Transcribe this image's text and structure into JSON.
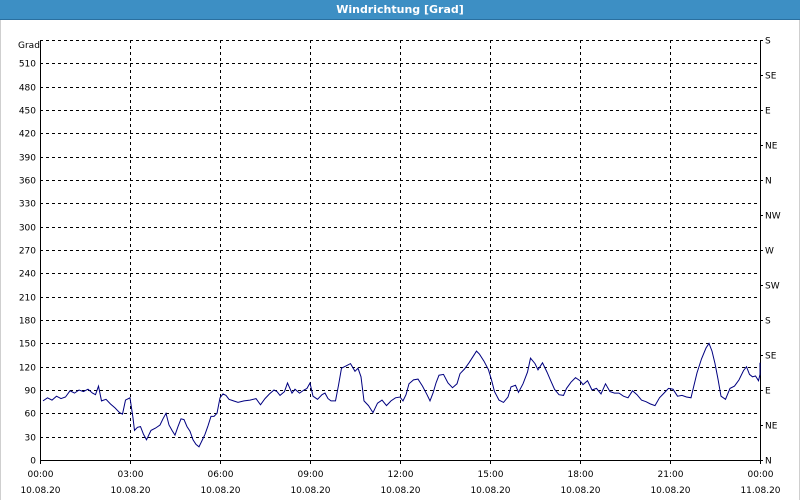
{
  "window": {
    "title": "Windrichtung [Grad]"
  },
  "chart_data": {
    "type": "line",
    "title": "Windrichtung [Grad]",
    "ylabel": "Grad",
    "ylim": [
      0,
      540
    ],
    "y_ticks": [
      0,
      30,
      60,
      90,
      120,
      150,
      180,
      210,
      240,
      270,
      300,
      330,
      360,
      390,
      420,
      450,
      480,
      510
    ],
    "y_right_ticks": [
      {
        "value": 0,
        "label": "N"
      },
      {
        "value": 45,
        "label": "NE"
      },
      {
        "value": 90,
        "label": "E"
      },
      {
        "value": 135,
        "label": "SE"
      },
      {
        "value": 180,
        "label": "S"
      },
      {
        "value": 225,
        "label": "SW"
      },
      {
        "value": 270,
        "label": "W"
      },
      {
        "value": 315,
        "label": "NW"
      },
      {
        "value": 360,
        "label": "N"
      },
      {
        "value": 405,
        "label": "NE"
      },
      {
        "value": 450,
        "label": "E"
      },
      {
        "value": 495,
        "label": "SE"
      },
      {
        "value": 540,
        "label": "S"
      }
    ],
    "x_unit": "hours",
    "xlim": [
      0,
      24
    ],
    "x_ticks": [
      {
        "hour": 0,
        "time": "00:00",
        "date": "10.08.20"
      },
      {
        "hour": 3,
        "time": "03:00",
        "date": "10.08.20"
      },
      {
        "hour": 6,
        "time": "06:00",
        "date": "10.08.20"
      },
      {
        "hour": 9,
        "time": "09:00",
        "date": "10.08.20"
      },
      {
        "hour": 12,
        "time": "12:00",
        "date": "10.08.20"
      },
      {
        "hour": 15,
        "time": "15:00",
        "date": "10.08.20"
      },
      {
        "hour": 18,
        "time": "18:00",
        "date": "10.08.20"
      },
      {
        "hour": 21,
        "time": "21:00",
        "date": "10.08.20"
      },
      {
        "hour": 24,
        "time": "00:00",
        "date": "11.08.20"
      }
    ],
    "grid": true,
    "series": [
      {
        "color": "#000080",
        "points": [
          [
            0.1,
            76
          ],
          [
            0.25,
            80
          ],
          [
            0.4,
            77
          ],
          [
            0.55,
            82
          ],
          [
            0.7,
            79
          ],
          [
            0.85,
            81
          ],
          [
            1.0,
            89
          ],
          [
            1.15,
            86
          ],
          [
            1.3,
            90
          ],
          [
            1.45,
            88
          ],
          [
            1.6,
            91
          ],
          [
            1.75,
            86
          ],
          [
            1.85,
            84
          ],
          [
            1.95,
            95
          ],
          [
            2.05,
            76
          ],
          [
            2.2,
            78
          ],
          [
            2.35,
            72
          ],
          [
            2.5,
            67
          ],
          [
            2.65,
            61
          ],
          [
            2.75,
            59
          ],
          [
            2.85,
            77
          ],
          [
            3.0,
            80
          ],
          [
            3.1,
            54
          ],
          [
            3.15,
            38
          ],
          [
            3.25,
            42
          ],
          [
            3.35,
            43
          ],
          [
            3.45,
            33
          ],
          [
            3.55,
            26
          ],
          [
            3.7,
            38
          ],
          [
            3.85,
            41
          ],
          [
            4.0,
            45
          ],
          [
            4.1,
            53
          ],
          [
            4.2,
            60
          ],
          [
            4.3,
            45
          ],
          [
            4.4,
            38
          ],
          [
            4.5,
            32
          ],
          [
            4.6,
            43
          ],
          [
            4.7,
            53
          ],
          [
            4.8,
            52
          ],
          [
            4.9,
            43
          ],
          [
            5.0,
            37
          ],
          [
            5.1,
            26
          ],
          [
            5.2,
            20
          ],
          [
            5.3,
            17
          ],
          [
            5.4,
            25
          ],
          [
            5.5,
            33
          ],
          [
            5.6,
            44
          ],
          [
            5.7,
            56
          ],
          [
            5.8,
            56
          ],
          [
            5.9,
            60
          ],
          [
            6.0,
            80
          ],
          [
            6.1,
            85
          ],
          [
            6.2,
            83
          ],
          [
            6.3,
            78
          ],
          [
            6.45,
            76
          ],
          [
            6.6,
            74
          ],
          [
            6.8,
            76
          ],
          [
            7.0,
            77
          ],
          [
            7.2,
            79
          ],
          [
            7.35,
            71
          ],
          [
            7.5,
            79
          ],
          [
            7.65,
            85
          ],
          [
            7.8,
            90
          ],
          [
            7.9,
            88
          ],
          [
            8.0,
            83
          ],
          [
            8.15,
            88
          ],
          [
            8.25,
            99
          ],
          [
            8.4,
            86
          ],
          [
            8.5,
            91
          ],
          [
            8.65,
            86
          ],
          [
            8.8,
            90
          ],
          [
            8.9,
            92
          ],
          [
            9.0,
            99
          ],
          [
            9.1,
            82
          ],
          [
            9.25,
            78
          ],
          [
            9.4,
            84
          ],
          [
            9.5,
            86
          ],
          [
            9.6,
            79
          ],
          [
            9.7,
            76
          ],
          [
            9.85,
            76
          ],
          [
            9.95,
            96
          ],
          [
            10.05,
            118
          ],
          [
            10.2,
            121
          ],
          [
            10.35,
            124
          ],
          [
            10.5,
            114
          ],
          [
            10.6,
            118
          ],
          [
            10.7,
            107
          ],
          [
            10.8,
            76
          ],
          [
            10.95,
            70
          ],
          [
            11.1,
            61
          ],
          [
            11.25,
            73
          ],
          [
            11.4,
            77
          ],
          [
            11.55,
            70
          ],
          [
            11.7,
            76
          ],
          [
            11.85,
            80
          ],
          [
            12.0,
            81
          ],
          [
            12.1,
            76
          ],
          [
            12.2,
            84
          ],
          [
            12.3,
            98
          ],
          [
            12.45,
            103
          ],
          [
            12.6,
            104
          ],
          [
            12.75,
            95
          ],
          [
            12.9,
            84
          ],
          [
            13.0,
            76
          ],
          [
            13.1,
            86
          ],
          [
            13.2,
            99
          ],
          [
            13.3,
            109
          ],
          [
            13.45,
            110
          ],
          [
            13.6,
            99
          ],
          [
            13.75,
            93
          ],
          [
            13.9,
            98
          ],
          [
            14.0,
            111
          ],
          [
            14.15,
            117
          ],
          [
            14.3,
            125
          ],
          [
            14.45,
            134
          ],
          [
            14.55,
            140
          ],
          [
            14.65,
            136
          ],
          [
            14.8,
            127
          ],
          [
            14.95,
            116
          ],
          [
            15.05,
            103
          ],
          [
            15.15,
            88
          ],
          [
            15.3,
            77
          ],
          [
            15.45,
            74
          ],
          [
            15.6,
            81
          ],
          [
            15.7,
            94
          ],
          [
            15.85,
            96
          ],
          [
            15.95,
            87
          ],
          [
            16.1,
            98
          ],
          [
            16.25,
            113
          ],
          [
            16.35,
            131
          ],
          [
            16.5,
            124
          ],
          [
            16.6,
            116
          ],
          [
            16.75,
            125
          ],
          [
            16.9,
            113
          ],
          [
            17.0,
            104
          ],
          [
            17.15,
            91
          ],
          [
            17.3,
            84
          ],
          [
            17.45,
            83
          ],
          [
            17.55,
            92
          ],
          [
            17.7,
            100
          ],
          [
            17.85,
            106
          ],
          [
            18.0,
            102
          ],
          [
            18.1,
            97
          ],
          [
            18.25,
            102
          ],
          [
            18.4,
            90
          ],
          [
            18.55,
            92
          ],
          [
            18.7,
            85
          ],
          [
            18.85,
            98
          ],
          [
            19.0,
            88
          ],
          [
            19.15,
            86
          ],
          [
            19.3,
            86
          ],
          [
            19.45,
            82
          ],
          [
            19.6,
            80
          ],
          [
            19.75,
            89
          ],
          [
            19.9,
            84
          ],
          [
            20.05,
            77
          ],
          [
            20.2,
            75
          ],
          [
            20.35,
            72
          ],
          [
            20.5,
            70
          ],
          [
            20.65,
            80
          ],
          [
            20.8,
            86
          ],
          [
            20.95,
            92
          ],
          [
            21.1,
            91
          ],
          [
            21.25,
            82
          ],
          [
            21.4,
            83
          ],
          [
            21.55,
            81
          ],
          [
            21.7,
            80
          ],
          [
            21.8,
            96
          ],
          [
            21.9,
            112
          ],
          [
            22.05,
            130
          ],
          [
            22.2,
            144
          ],
          [
            22.3,
            150
          ],
          [
            22.4,
            140
          ],
          [
            22.5,
            124
          ],
          [
            22.6,
            104
          ],
          [
            22.7,
            82
          ],
          [
            22.85,
            78
          ],
          [
            23.0,
            92
          ],
          [
            23.15,
            95
          ],
          [
            23.3,
            103
          ],
          [
            23.45,
            115
          ],
          [
            23.55,
            120
          ],
          [
            23.65,
            110
          ],
          [
            23.75,
            107
          ],
          [
            23.85,
            108
          ],
          [
            23.95,
            102
          ],
          [
            24.1,
            110
          ],
          [
            24.2,
            125
          ],
          [
            24.3,
            118
          ]
        ]
      }
    ]
  }
}
